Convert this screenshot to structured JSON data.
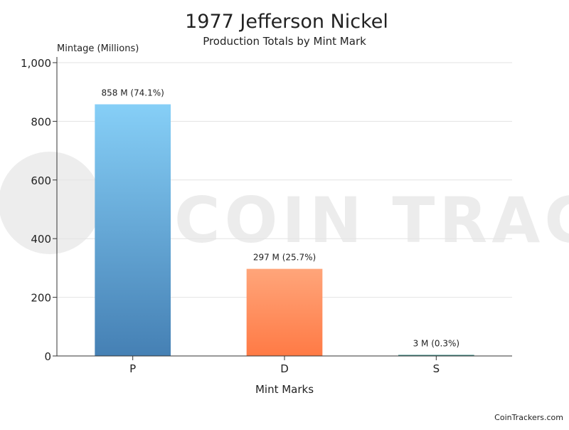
{
  "chart_data": {
    "type": "bar",
    "title": "1977 Jefferson Nickel",
    "subtitle": "Production Totals by Mint Mark",
    "xlabel": "Mint Marks",
    "ylabel": "Mintage (Millions)",
    "categories": [
      "P",
      "D",
      "S"
    ],
    "values": [
      858,
      297,
      3
    ],
    "data_labels": [
      "858 M (74.1%)",
      "297 M (25.7%)",
      "3 M (0.3%)"
    ],
    "bar_colors": [
      {
        "top": "#86cff7",
        "bottom": "#4580b4"
      },
      {
        "top": "#ffa57a",
        "bottom": "#ff7a45"
      },
      {
        "top": "#3f8f8a",
        "bottom": "#2f7a74"
      }
    ],
    "ylim": [
      0,
      1000
    ],
    "yticks": [
      0,
      200,
      400,
      600,
      800,
      1000
    ],
    "ytick_labels": [
      "0",
      "200",
      "400",
      "600",
      "800",
      "1,000"
    ],
    "grid": true,
    "legend": "none"
  },
  "watermark": {
    "text": "COIN TRACKERS"
  },
  "footer": {
    "credit": "CoinTrackers.com"
  }
}
